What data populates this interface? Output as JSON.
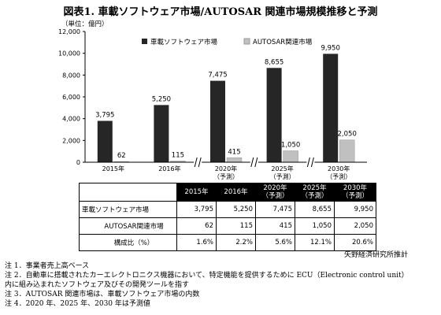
{
  "chart_data": {
    "type": "bar",
    "title": "図表1. 車載ソフトウェア市場/AUTOSAR 関連市場規模推移と予測",
    "unit_label": "（単位：億円）",
    "categories": [
      "2015年",
      "2016年",
      "2020年\n（予測）",
      "2025年\n（予測）",
      "2030年\n（予測）"
    ],
    "series": [
      {
        "name": "車載ソフトウェア市場",
        "color": "#262626",
        "values": [
          3795,
          5250,
          7475,
          8655,
          9950
        ],
        "labels": [
          "3,795",
          "5,250",
          "7,475",
          "8,655",
          "9,950"
        ]
      },
      {
        "name": "AUTOSAR関連市場",
        "color": "#c0c0c0",
        "values": [
          62,
          115,
          415,
          1050,
          2050
        ],
        "labels": [
          "62",
          "115",
          "415",
          "1,050",
          "2,050"
        ]
      }
    ],
    "yticks": [
      "0",
      "2,000",
      "4,000",
      "6,000",
      "8,000",
      "10,000",
      "12,000"
    ],
    "ylim": [
      0,
      12000
    ],
    "grid": false,
    "legend": "top-center",
    "axis_break_after": [
      1,
      2,
      3
    ]
  },
  "table": {
    "headers": [
      "",
      "2015年",
      "2016年",
      "2020年\n（予測）",
      "2025年\n（予測）",
      "2030年\n（予測）"
    ],
    "rows": [
      {
        "label": "車載ソフトウェア市場",
        "values": [
          "3,795",
          "5,250",
          "7,475",
          "8,655",
          "9,950"
        ]
      },
      {
        "label": "AUTOSAR関連市場",
        "values": [
          "62",
          "115",
          "415",
          "1,050",
          "2,050"
        ]
      },
      {
        "label": "構成比（%）",
        "values": [
          "1.6%",
          "2.2%",
          "5.6%",
          "12.1%",
          "20.6%"
        ]
      }
    ]
  },
  "source": "矢野経済研究所推計",
  "notes": [
    "注 1．事業者売上高ベース",
    "注 2．自動車に搭載されたカーエレクトロニクス機器において、特定機能を提供するために ECU（Electronic control unit）",
    "内に組み込まれたソフトウェア及びその開発ツールを指す",
    "注 3．AUTOSAR 関連市場は、車載ソフトウェア市場の内数",
    "注 4．2020 年、2025 年、2030 年は予測値"
  ]
}
